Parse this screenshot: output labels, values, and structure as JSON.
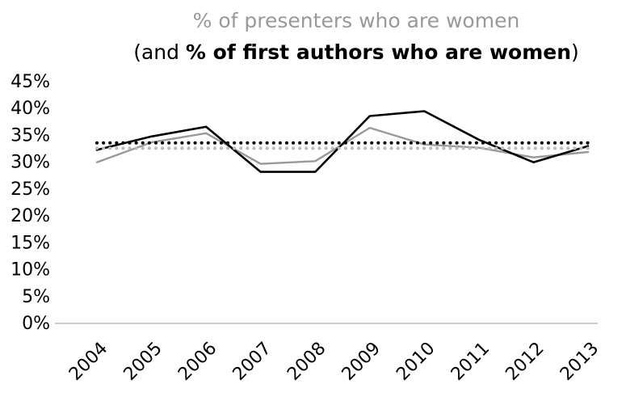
{
  "chart_data": {
    "type": "line",
    "title": {
      "line1": "% of presenters who are women",
      "line2_open": "(and ",
      "line2_bold": "% of first authors who are women",
      "line2_close": ")"
    },
    "xlabel": "",
    "ylabel": "",
    "categories": [
      "2004",
      "2005",
      "2006",
      "2007",
      "2008",
      "2009",
      "2010",
      "2011",
      "2012",
      "2013"
    ],
    "y_ticks": [
      "0%",
      "5%",
      "10%",
      "15%",
      "20%",
      "25%",
      "30%",
      "35%",
      "40%",
      "45%"
    ],
    "ylim": [
      0,
      45
    ],
    "grid": false,
    "legend": "none",
    "series": [
      {
        "values": [
          30.0,
          33.7,
          35.4,
          29.7,
          30.2,
          36.4,
          33.3,
          32.7,
          30.9,
          31.9
        ],
        "color": "#999999",
        "style": "solid"
      },
      {
        "values": [
          32.3,
          34.8,
          36.6,
          28.2,
          28.2,
          38.6,
          39.5,
          34.2,
          30.0,
          33.0
        ],
        "color": "#000000",
        "style": "solid"
      },
      {
        "values": [
          32.6,
          32.6,
          32.6,
          32.6,
          32.6,
          32.6,
          32.6,
          32.6,
          32.6,
          32.6
        ],
        "color": "#bbbbbb",
        "style": "dotted"
      },
      {
        "values": [
          33.6,
          33.6,
          33.6,
          33.6,
          33.6,
          33.6,
          33.6,
          33.6,
          33.6,
          33.6
        ],
        "color": "#000000",
        "style": "dotted"
      }
    ],
    "axis_color": "#bfbfbf"
  }
}
